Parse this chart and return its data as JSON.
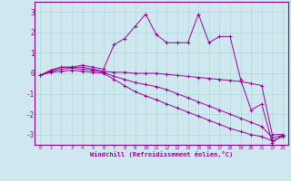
{
  "xlabel": "Windchill (Refroidissement éolien,°C)",
  "background_color": "#cfe8f0",
  "grid_color": "#b0d8d8",
  "line_color": "#990099",
  "spine_color": "#880088",
  "xlim": [
    -0.5,
    23.5
  ],
  "ylim": [
    -3.5,
    3.5
  ],
  "yticks": [
    -3,
    -2,
    -1,
    0,
    1,
    2,
    3
  ],
  "xticks": [
    0,
    1,
    2,
    3,
    4,
    5,
    6,
    7,
    8,
    9,
    10,
    11,
    12,
    13,
    14,
    15,
    16,
    17,
    18,
    19,
    20,
    21,
    22,
    23
  ],
  "series": [
    [
      -0.1,
      0.15,
      0.3,
      0.3,
      0.4,
      0.3,
      0.2,
      1.4,
      1.7,
      2.3,
      2.9,
      1.9,
      1.5,
      1.5,
      1.5,
      2.9,
      1.5,
      1.8,
      1.8,
      -0.3,
      -1.8,
      -1.5,
      -3.4,
      -3.0
    ],
    [
      -0.1,
      0.15,
      0.3,
      0.3,
      0.3,
      0.2,
      0.1,
      0.05,
      0.05,
      0.0,
      0.0,
      0.0,
      -0.05,
      -0.1,
      -0.15,
      -0.2,
      -0.25,
      -0.3,
      -0.35,
      -0.4,
      -0.5,
      -0.6,
      -3.0,
      -3.0
    ],
    [
      -0.1,
      0.05,
      0.1,
      0.15,
      0.1,
      0.05,
      0.0,
      -0.3,
      -0.6,
      -0.9,
      -1.1,
      -1.3,
      -1.5,
      -1.7,
      -1.9,
      -2.1,
      -2.3,
      -2.5,
      -2.7,
      -2.85,
      -3.0,
      -3.1,
      -3.3,
      -3.1
    ],
    [
      -0.1,
      0.1,
      0.2,
      0.25,
      0.2,
      0.15,
      0.05,
      -0.15,
      -0.3,
      -0.45,
      -0.55,
      -0.65,
      -0.8,
      -1.0,
      -1.2,
      -1.4,
      -1.6,
      -1.8,
      -2.0,
      -2.2,
      -2.4,
      -2.6,
      -3.15,
      -3.05
    ]
  ]
}
